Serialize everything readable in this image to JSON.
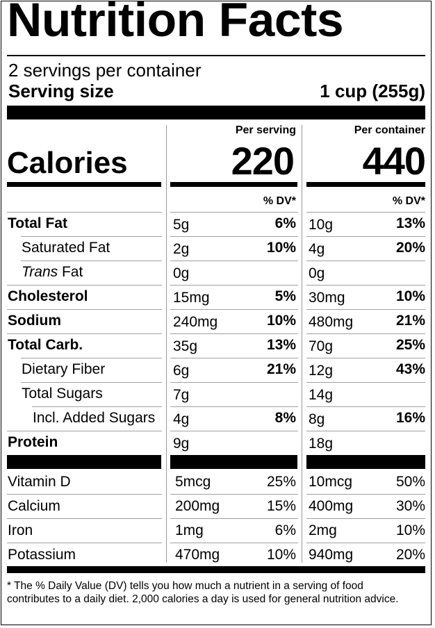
{
  "label": {
    "title": "Nutrition Facts",
    "servings_per_container": "2 servings per container",
    "serving_size_label": "Serving size",
    "serving_size_value": "1 cup (255g)",
    "per_serving_header": "Per serving",
    "per_container_header": "Per container",
    "calories_label": "Calories",
    "calories_per_serving": "220",
    "calories_per_container": "440",
    "dv_header": "% DV*",
    "nutrients": [
      {
        "name": "Total Fat",
        "serving_amount": "5g",
        "serving_dv": "6%",
        "container_amount": "10g",
        "container_dv": "13%"
      },
      {
        "name": "Saturated Fat",
        "serving_amount": "2g",
        "serving_dv": "10%",
        "container_amount": "4g",
        "container_dv": "20%"
      },
      {
        "name_italic": "Trans",
        "name": " Fat",
        "serving_amount": "0g",
        "serving_dv": "",
        "container_amount": "0g",
        "container_dv": ""
      },
      {
        "name": "Cholesterol",
        "serving_amount": "15mg",
        "serving_dv": "5%",
        "container_amount": "30mg",
        "container_dv": "10%"
      },
      {
        "name": "Sodium",
        "serving_amount": "240mg",
        "serving_dv": "10%",
        "container_amount": "480mg",
        "container_dv": "21%"
      },
      {
        "name": "Total Carb.",
        "serving_amount": "35g",
        "serving_dv": "13%",
        "container_amount": "70g",
        "container_dv": "25%"
      },
      {
        "name": "Dietary Fiber",
        "serving_amount": "6g",
        "serving_dv": "21%",
        "container_amount": "12g",
        "container_dv": "43%"
      },
      {
        "name": "Total Sugars",
        "serving_amount": "7g",
        "serving_dv": "",
        "container_amount": "14g",
        "container_dv": ""
      },
      {
        "name": "Incl. Added Sugars",
        "serving_amount": "4g",
        "serving_dv": "8%",
        "container_amount": "8g",
        "container_dv": "16%"
      },
      {
        "name": "Protein",
        "serving_amount": "9g",
        "serving_dv": "",
        "container_amount": "18g",
        "container_dv": ""
      }
    ],
    "vitamins": [
      {
        "name": "Vitamin D",
        "serving_amount": "5mcg",
        "serving_dv": "25%",
        "container_amount": "10mcg",
        "container_dv": "50%"
      },
      {
        "name": "Calcium",
        "serving_amount": "200mg",
        "serving_dv": "15%",
        "container_amount": "400mg",
        "container_dv": "30%"
      },
      {
        "name": "Iron",
        "serving_amount": "1mg",
        "serving_dv": "6%",
        "container_amount": "2mg",
        "container_dv": "10%"
      },
      {
        "name": "Potassium",
        "serving_amount": "470mg",
        "serving_dv": "10%",
        "container_amount": "940mg",
        "container_dv": "20%"
      }
    ],
    "footnote": "* The % Daily Value (DV) tells you how much a nutrient in a serving of food contributes to a daily diet. 2,000 calories a day is used for general nutrition advice."
  }
}
